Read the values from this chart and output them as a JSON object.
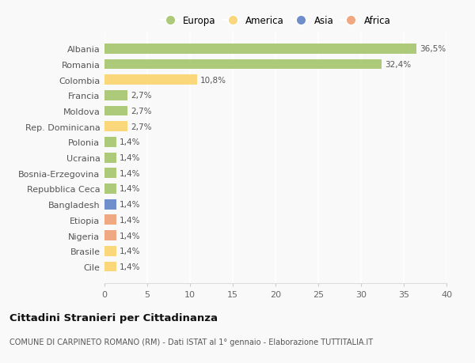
{
  "countries": [
    "Albania",
    "Romania",
    "Colombia",
    "Francia",
    "Moldova",
    "Rep. Dominicana",
    "Polonia",
    "Ucraina",
    "Bosnia-Erzegovina",
    "Repubblica Ceca",
    "Bangladesh",
    "Etiopia",
    "Nigeria",
    "Brasile",
    "Cile"
  ],
  "values": [
    36.5,
    32.4,
    10.8,
    2.7,
    2.7,
    2.7,
    1.4,
    1.4,
    1.4,
    1.4,
    1.4,
    1.4,
    1.4,
    1.4,
    1.4
  ],
  "labels": [
    "36,5%",
    "32,4%",
    "10,8%",
    "2,7%",
    "2,7%",
    "2,7%",
    "1,4%",
    "1,4%",
    "1,4%",
    "1,4%",
    "1,4%",
    "1,4%",
    "1,4%",
    "1,4%",
    "1,4%"
  ],
  "colors": [
    "#adc97a",
    "#adc97a",
    "#f9d77a",
    "#adc97a",
    "#adc97a",
    "#f9d77a",
    "#adc97a",
    "#adc97a",
    "#adc97a",
    "#adc97a",
    "#6e8fcb",
    "#f0a882",
    "#f0a882",
    "#f9d77a",
    "#f9d77a"
  ],
  "legend_labels": [
    "Europa",
    "America",
    "Asia",
    "Africa"
  ],
  "legend_colors": [
    "#adc97a",
    "#f9d77a",
    "#6e8fcb",
    "#f0a882"
  ],
  "xlim": [
    0,
    40
  ],
  "xticks": [
    0,
    5,
    10,
    15,
    20,
    25,
    30,
    35,
    40
  ],
  "title_main": "Cittadini Stranieri per Cittadinanza",
  "title_sub": "COMUNE DI CARPINETO ROMANO (RM) - Dati ISTAT al 1° gennaio - Elaborazione TUTTITALIA.IT",
  "bg_color": "#f9f9f9",
  "grid_color": "#ffffff",
  "bar_height": 0.65
}
